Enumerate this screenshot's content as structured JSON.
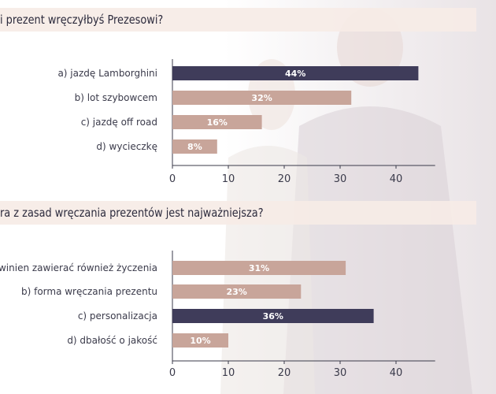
{
  "questions": [
    {
      "text": "i prezent wręczyłbyś Prezesowi?"
    },
    {
      "text": "ra z zasad wręczania prezentów jest najważniejsza?"
    }
  ],
  "colors": {
    "highlight": "#3f3c5a",
    "normal": "#c8a59a",
    "axis": "#3a3a4a",
    "label": "#3a3a4a",
    "band": "#f6ece6"
  },
  "chart_data": [
    {
      "type": "bar",
      "orientation": "horizontal",
      "categories": [
        "a)  jazdę Lamborghini",
        "b) lot szybowcem",
        "c) jazdę off road",
        "d) wycieczkę"
      ],
      "values": [
        44,
        32,
        16,
        8
      ],
      "data_labels": [
        "44%",
        "32%",
        "16%",
        "8%"
      ],
      "highlight_index": 0,
      "xlim": [
        0,
        47
      ],
      "xticks": [
        0,
        10,
        20,
        30,
        40
      ]
    },
    {
      "type": "bar",
      "orientation": "horizontal",
      "categories": [
        ") prezent powinien zawierać również życzenia",
        "b) forma wręczania prezentu",
        "c) personalizacja",
        "d) dbałość o jakość"
      ],
      "values": [
        31,
        23,
        36,
        10
      ],
      "data_labels": [
        "31%",
        "23%",
        "36%",
        "10%"
      ],
      "highlight_index": 2,
      "xlim": [
        0,
        47
      ],
      "xticks": [
        0,
        10,
        20,
        30,
        40
      ]
    }
  ]
}
